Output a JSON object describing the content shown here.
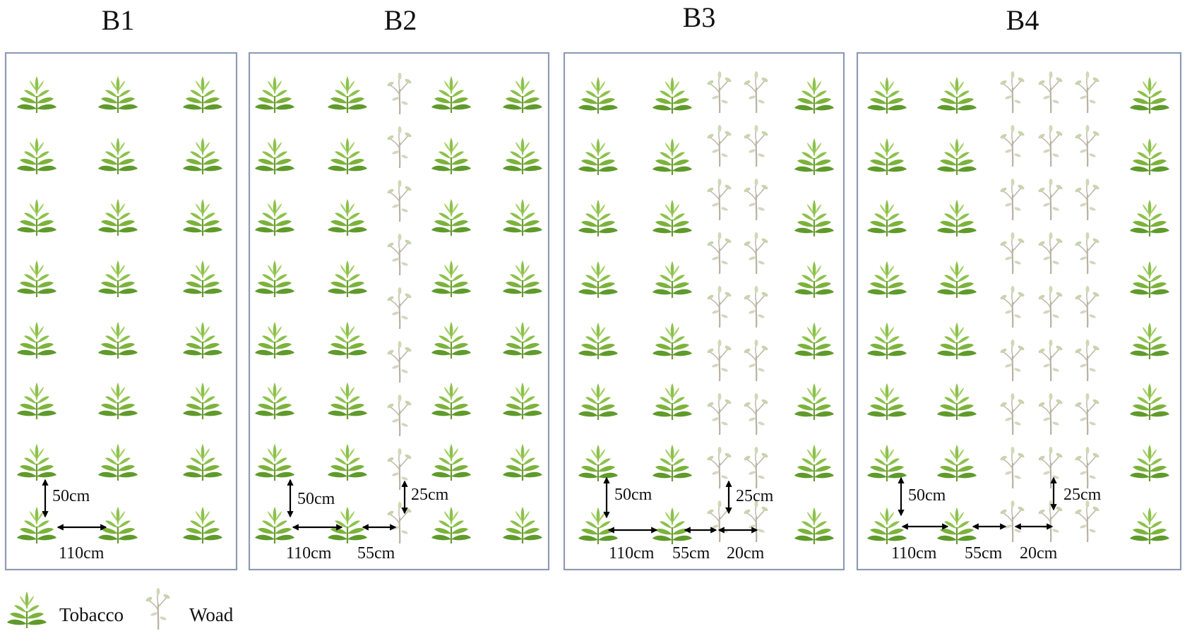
{
  "panels": [
    {
      "id": "B1",
      "title": "B1",
      "columns": [
        "tobacco",
        "tobacco",
        "tobacco"
      ],
      "labels": {
        "v1": "50cm",
        "h1": "110cm"
      }
    },
    {
      "id": "B2",
      "title": "B2",
      "columns": [
        "tobacco",
        "tobacco",
        "woad",
        "tobacco",
        "tobacco"
      ],
      "labels": {
        "v1": "50cm",
        "v2": "25cm",
        "h1": "110cm",
        "h2": "55cm"
      }
    },
    {
      "id": "B3",
      "title": "B3",
      "columns": [
        "tobacco",
        "tobacco",
        "woad",
        "woad",
        "tobacco"
      ],
      "labels": {
        "v1": "50cm",
        "v2": "25cm",
        "h1": "110cm",
        "h2": "55cm",
        "h3": "20cm"
      }
    },
    {
      "id": "B4",
      "title": "B4",
      "columns": [
        "tobacco",
        "tobacco",
        "woad",
        "woad",
        "woad",
        "tobacco"
      ],
      "labels": {
        "v1": "50cm",
        "v2": "25cm",
        "h1": "110cm",
        "h2": "55cm",
        "h3": "20cm"
      }
    }
  ],
  "legend": {
    "tobacco_label": "Tobacco",
    "woad_label": "Woad"
  },
  "colors": {
    "plot_border": "#8f9bb5",
    "tobacco_dark": "#5f9a2b",
    "tobacco_light": "#8cc14c",
    "woad_stem": "#b8b1a2",
    "woad_leaf": "#c9d3ad"
  },
  "icons": {
    "tobacco": "tobacco-plant-icon",
    "woad": "woad-plant-icon"
  }
}
